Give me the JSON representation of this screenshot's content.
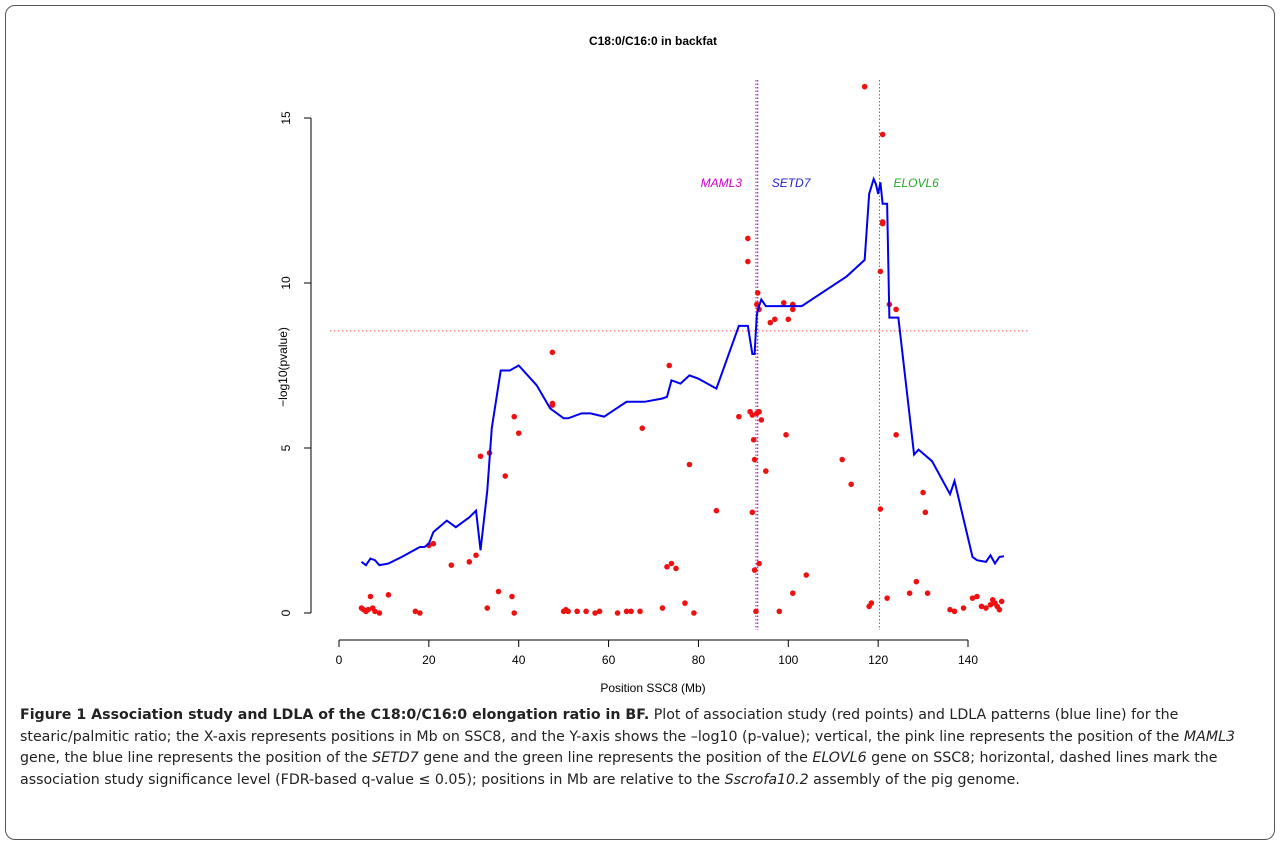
{
  "chart_data": {
    "type": "scatter",
    "title": "C18:0/C16:0 in backfat",
    "xlabel": "Position SSC8 (Mb)",
    "ylabel": "−log10(pvalue)",
    "xlim": [
      0,
      140
    ],
    "ylim": [
      0,
      15
    ],
    "xticks": [
      0,
      20,
      40,
      60,
      80,
      100,
      120,
      140
    ],
    "yticks": [
      0,
      5,
      10,
      15
    ],
    "series": [
      {
        "type": "scatter",
        "color": "#ee1111",
        "x": [
          5,
          5.5,
          6,
          6.5,
          7,
          7.5,
          8,
          9,
          11,
          17,
          18,
          20,
          21,
          25,
          29,
          30.5,
          31.5,
          33,
          33.5,
          35.5,
          37,
          38.5,
          39,
          39,
          40,
          47.5,
          47.5,
          47.5,
          50,
          50.5,
          51,
          53,
          55,
          57,
          58,
          62,
          64,
          65,
          67,
          67.5,
          72,
          73,
          73.5,
          74,
          75,
          77,
          78,
          79,
          84,
          89,
          91,
          91,
          91.5,
          92,
          92,
          92.3,
          92.5,
          92.5,
          92.8,
          93,
          93,
          93.2,
          93.5,
          93.5,
          93.5,
          94,
          95,
          96,
          97,
          98,
          99,
          99.5,
          100,
          101,
          101,
          101,
          104,
          112,
          114,
          117,
          118,
          118.5,
          120.5,
          120.5,
          121,
          121,
          121,
          122,
          122.5,
          124,
          124,
          127,
          128.5,
          130,
          130.5,
          131,
          136,
          137,
          139,
          141,
          142,
          143,
          144,
          145,
          145.5,
          146,
          146.5,
          147,
          147.5
        ],
        "values": [
          0.15,
          0.1,
          0.05,
          0.1,
          0.5,
          0.15,
          0.05,
          0,
          0.55,
          0.05,
          0,
          2.05,
          2.1,
          1.45,
          1.55,
          1.75,
          4.75,
          0.15,
          4.85,
          0.65,
          4.15,
          0.5,
          5.95,
          0,
          5.45,
          7.9,
          6.35,
          6.3,
          0.05,
          0.1,
          0.05,
          0.05,
          0.05,
          0,
          0.05,
          0,
          0.05,
          0.05,
          0.05,
          5.6,
          0.15,
          1.4,
          7.5,
          1.5,
          1.35,
          0.3,
          4.5,
          0,
          3.1,
          5.95,
          11.35,
          10.65,
          6.1,
          3.05,
          6,
          5.25,
          4.65,
          1.3,
          0.05,
          6.05,
          9.35,
          9.7,
          9.2,
          1.5,
          6.1,
          5.85,
          4.3,
          8.8,
          8.9,
          0.05,
          9.4,
          5.4,
          8.9,
          9.35,
          9.2,
          0.6,
          1.15,
          4.65,
          3.9,
          15.95,
          0.2,
          0.3,
          10.35,
          3.15,
          14.5,
          11.8,
          11.85,
          0.45,
          9.35,
          9.2,
          5.4,
          0.6,
          0.95,
          3.65,
          3.05,
          0.6,
          0.1,
          0.05,
          0.15,
          0.45,
          0.5,
          0.2,
          0.15,
          0.25,
          0.4,
          0.3,
          0.2,
          0.1,
          0.35
        ]
      },
      {
        "type": "line",
        "color": "#0000ee",
        "x": [
          5,
          6,
          7,
          8,
          9,
          11,
          14,
          18,
          19,
          20,
          21,
          24,
          26,
          29,
          30.5,
          31.5,
          33,
          34,
          36,
          38,
          40,
          44,
          47,
          50,
          51,
          54,
          56,
          59,
          64,
          68,
          72,
          73,
          74,
          76,
          78,
          80,
          84,
          89,
          91,
          92,
          92.5,
          93,
          93.5,
          94,
          95,
          99,
          103,
          113,
          117,
          118,
          119,
          119.5,
          120,
          120.5,
          121,
          122,
          122.5,
          124.5,
          128,
          129,
          132,
          136,
          137,
          141,
          142,
          144,
          145,
          146,
          147,
          148
        ],
        "values": [
          1.55,
          1.45,
          1.65,
          1.6,
          1.45,
          1.5,
          1.7,
          2,
          2,
          2.1,
          2.45,
          2.8,
          2.6,
          2.9,
          3.1,
          1.9,
          3.7,
          5.6,
          7.35,
          7.35,
          7.5,
          6.9,
          6.2,
          5.9,
          5.9,
          6.05,
          6.05,
          5.95,
          6.4,
          6.4,
          6.5,
          6.55,
          7.05,
          6.95,
          7.2,
          7.1,
          6.8,
          8.7,
          8.7,
          7.85,
          7.85,
          9.05,
          9.3,
          9.5,
          9.3,
          9.3,
          9.3,
          10.2,
          10.7,
          12.7,
          13.15,
          13,
          12.7,
          13.05,
          12.4,
          12.4,
          8.95,
          8.95,
          4.8,
          4.95,
          4.6,
          3.6,
          4,
          1.7,
          1.6,
          1.55,
          1.75,
          1.5,
          1.7,
          1.72
        ]
      }
    ],
    "vlines": [
      {
        "x": 92.8,
        "color": "#cc00cc",
        "label": "MAML3",
        "label_side": "left"
      },
      {
        "x": 93.2,
        "color": "#2222cc",
        "label": "SETD7",
        "label_side": "right"
      },
      {
        "x": 120.3,
        "color": "#22aa22",
        "label": "ELOVL6",
        "label_side": "right"
      }
    ],
    "label_y": 13,
    "hline": {
      "y": 8.55,
      "color": "#ff5555"
    }
  },
  "caption": [
    {
      "text": "Figure 1 Association study and LDLA of the C18:0/C16:0 elongation ratio in BF.",
      "style": "bold"
    },
    {
      "text": " Plot of association study (red points) and LDLA patterns (blue line) for the stearic/palmitic ratio; the X-axis represents positions in Mb on SSC8, and the Y-axis shows the –log10 (p-value); vertical, the pink line represents the position of the ",
      "style": "normal"
    },
    {
      "text": "MAML3",
      "style": "italic"
    },
    {
      "text": " gene, the blue line represents the position of the ",
      "style": "normal"
    },
    {
      "text": "SETD7",
      "style": "italic"
    },
    {
      "text": " gene and the green line represents the position of the ",
      "style": "normal"
    },
    {
      "text": "ELOVL6",
      "style": "italic"
    },
    {
      "text": " gene on SSC8; horizontal, dashed lines mark the association study significance level (FDR-based q-value ≤ 0.05); positions in Mb are relative to the ",
      "style": "normal"
    },
    {
      "text": "Sscrofa10.2",
      "style": "italic"
    },
    {
      "text": " assembly of the pig genome.",
      "style": "normal"
    }
  ]
}
